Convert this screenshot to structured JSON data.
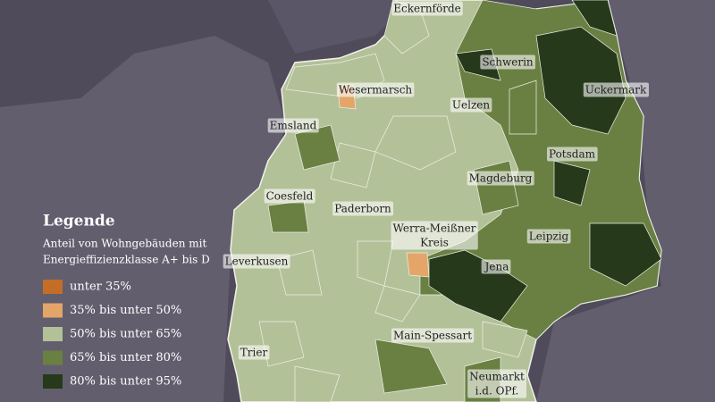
{
  "legend": {
    "title": "Legende",
    "subtitle": [
      "Anteil von Wohngebäuden mit",
      "Energieffizienzklasse A+ bis D"
    ],
    "items": [
      {
        "label": "unter 35%",
        "color": "#c46d26"
      },
      {
        "label": "35% bis unter 50%",
        "color": "#e3a668"
      },
      {
        "label": "50% bis unter 65%",
        "color": "#b3c198"
      },
      {
        "label": "65% bis unter 80%",
        "color": "#6a8043"
      },
      {
        "label": "80% bis unter 95%",
        "color": "#26391b"
      }
    ]
  },
  "places": [
    {
      "lines": [
        "Eckernförde"
      ]
    },
    {
      "lines": [
        "Schwerin"
      ]
    },
    {
      "lines": [
        "Uckermark"
      ]
    },
    {
      "lines": [
        "Wesermarsch"
      ]
    },
    {
      "lines": [
        "Uelzen"
      ]
    },
    {
      "lines": [
        "Emsland"
      ]
    },
    {
      "lines": [
        "Potsdam"
      ]
    },
    {
      "lines": [
        "Magdeburg"
      ]
    },
    {
      "lines": [
        "Coesfeld"
      ]
    },
    {
      "lines": [
        "Paderborn"
      ]
    },
    {
      "lines": [
        "Werra-Meißner",
        "Kreis"
      ]
    },
    {
      "lines": [
        "Leipzig"
      ]
    },
    {
      "lines": [
        "Leverkusen"
      ]
    },
    {
      "lines": [
        "Jena"
      ]
    },
    {
      "lines": [
        "Main-Spessart"
      ]
    },
    {
      "lines": [
        "Trier"
      ]
    },
    {
      "lines": [
        "Neumarkt",
        "i.d. OPf."
      ]
    }
  ]
}
